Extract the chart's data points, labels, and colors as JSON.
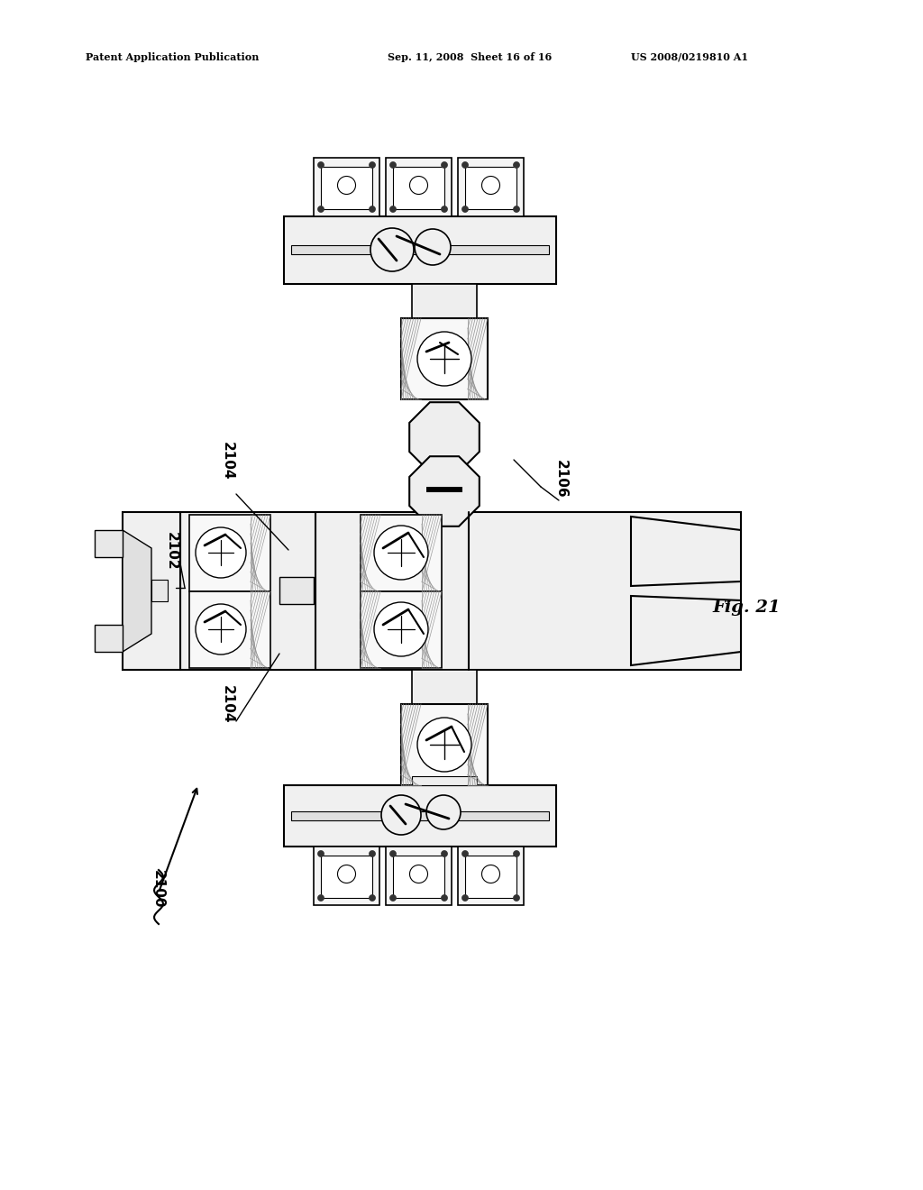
{
  "header_left": "Patent Application Publication",
  "header_mid": "Sep. 11, 2008  Sheet 16 of 16",
  "header_right": "US 2008/0219810 A1",
  "fig_label": "Fig. 21",
  "bg_color": "#ffffff",
  "line_color": "#000000"
}
